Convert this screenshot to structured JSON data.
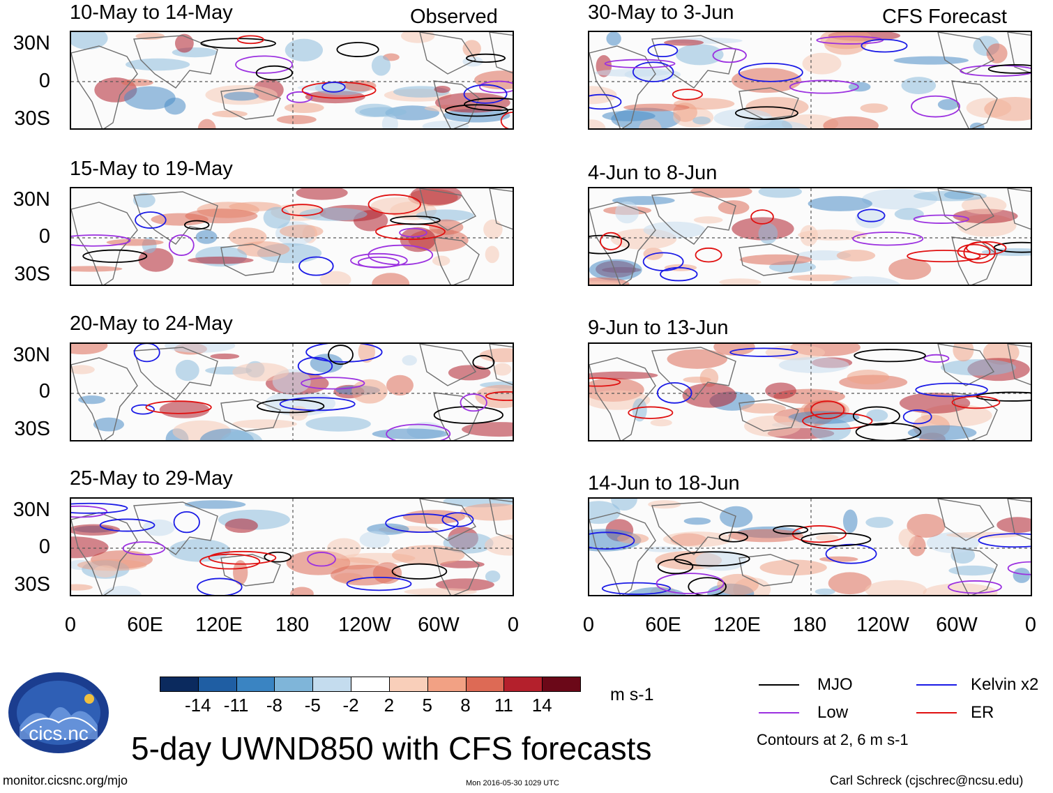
{
  "title": "5-day UWND850 with CFS forecasts",
  "observed_label": "Observed",
  "forecast_label": "CFS Forecast",
  "left_panels": [
    {
      "title": "10-May to 14-May"
    },
    {
      "title": "15-May to 19-May"
    },
    {
      "title": "20-May to 24-May"
    },
    {
      "title": "25-May to 29-May"
    }
  ],
  "right_panels": [
    {
      "title": "30-May to 3-Jun"
    },
    {
      "title": "4-Jun to 8-Jun"
    },
    {
      "title": "9-Jun to 13-Jun"
    },
    {
      "title": "14-Jun to 18-Jun"
    }
  ],
  "lat_labels": [
    "30N",
    "0",
    "30S"
  ],
  "lon_labels": [
    "0",
    "60E",
    "120E",
    "180",
    "120W",
    "60W",
    "0"
  ],
  "colorbar": {
    "colors": [
      "#0b2a5e",
      "#1f5ea3",
      "#3a84c2",
      "#7fb5d9",
      "#c4dcee",
      "#ffffff",
      "#f9cfba",
      "#f2a184",
      "#dd6a55",
      "#b4202c",
      "#6b0818"
    ],
    "labels": [
      "-14",
      "-11",
      "-8",
      "-5",
      "-2",
      "2",
      "5",
      "8",
      "11",
      "14"
    ],
    "units": "m s-1"
  },
  "legend": {
    "mjo": {
      "label": "MJO",
      "color": "#000000"
    },
    "kelvin": {
      "label": "Kelvin x2",
      "color": "#1a1ae6"
    },
    "low": {
      "label": "Low",
      "color": "#9b30e0"
    },
    "er": {
      "label": "ER",
      "color": "#e01010"
    },
    "contours_note": "Contours at 2, 6 m s-1"
  },
  "logo_text": "cics.nc",
  "footer": {
    "left": "monitor.cicsnc.org/mjo",
    "center": "Mon 2016-05-30 1029 UTC",
    "right": "Carl Schreck (cjschrec@ncsu.edu)"
  }
}
